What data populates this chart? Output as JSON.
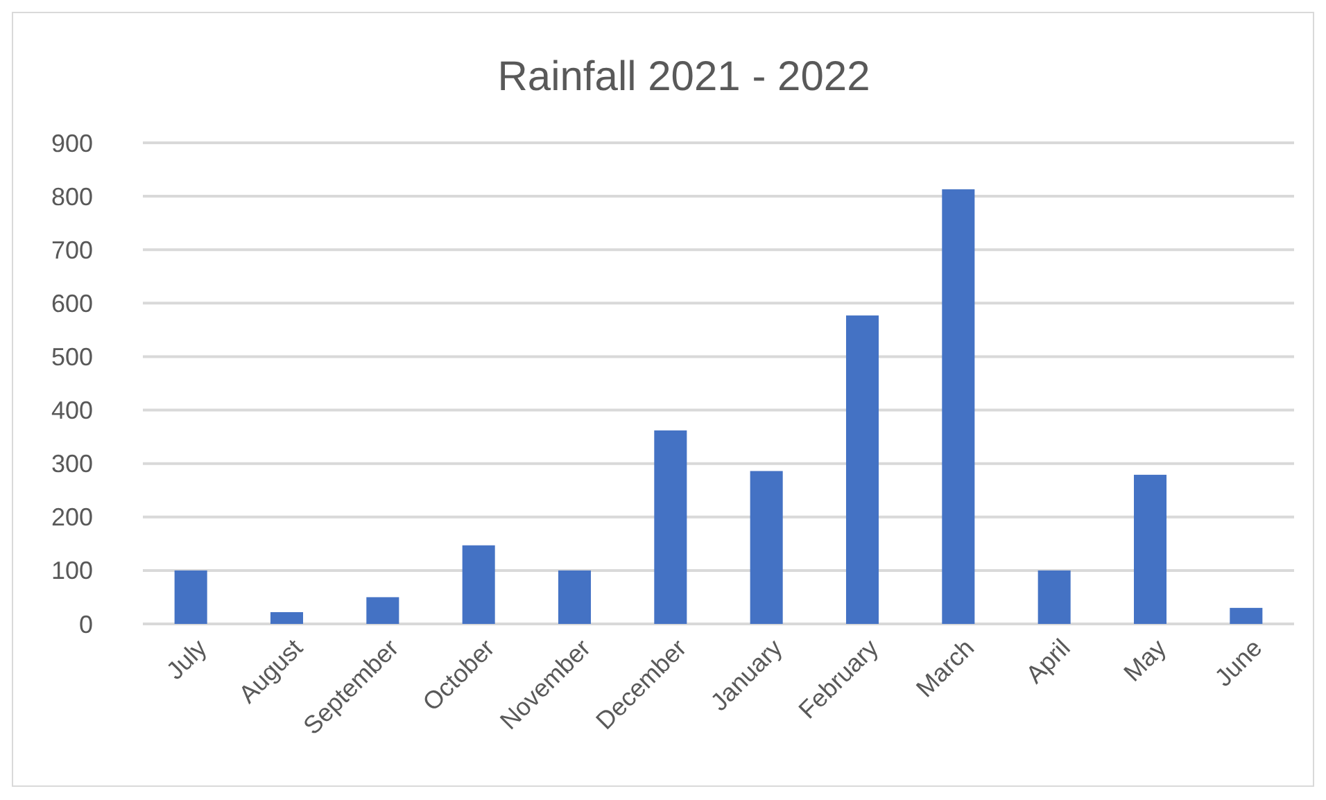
{
  "chart_data": {
    "type": "bar",
    "title": "Rainfall 2021 - 2022",
    "categories": [
      "July",
      "August",
      "September",
      "October",
      "November",
      "December",
      "January",
      "February",
      "March",
      "April",
      "May",
      "June"
    ],
    "values": [
      100,
      22,
      50,
      147,
      100,
      362,
      286,
      577,
      813,
      100,
      279,
      30
    ],
    "color": "#4472c4",
    "ylim": [
      0,
      900
    ],
    "yticks": [
      0,
      100,
      200,
      300,
      400,
      500,
      600,
      700,
      800,
      900
    ],
    "grid": true
  }
}
